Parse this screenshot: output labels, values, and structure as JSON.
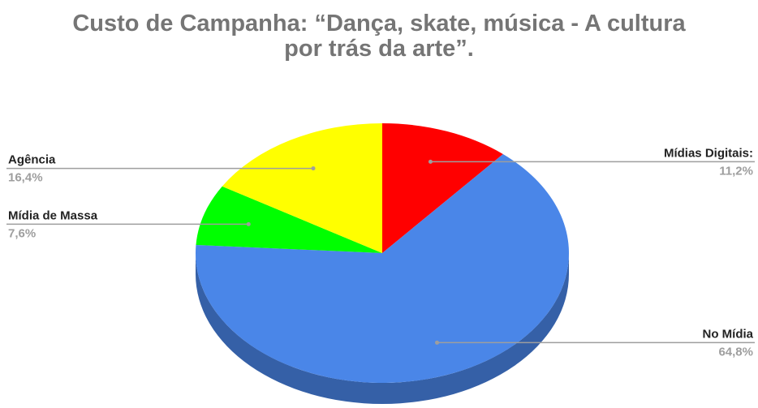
{
  "chart_data": {
    "type": "pie",
    "title_line1": "Custo de Campanha:  “Dança, skate, música - A cultura",
    "title_line2": "por trás da arte”.",
    "slices": [
      {
        "label": "Mídias Digitais:",
        "value_label": "11,2%",
        "value": 11.2,
        "color": "#ff0000"
      },
      {
        "label": "No Mídia",
        "value_label": "64,8%",
        "value": 64.8,
        "color": "#4a86e8"
      },
      {
        "label": "Mídia de Massa",
        "value_label": "7,6%",
        "value": 7.6,
        "color": "#00ff00"
      },
      {
        "label": "Agência",
        "value_label": "16,4%",
        "value": 16.4,
        "color": "#ffff00"
      }
    ],
    "style": "3d",
    "legend": "none"
  }
}
